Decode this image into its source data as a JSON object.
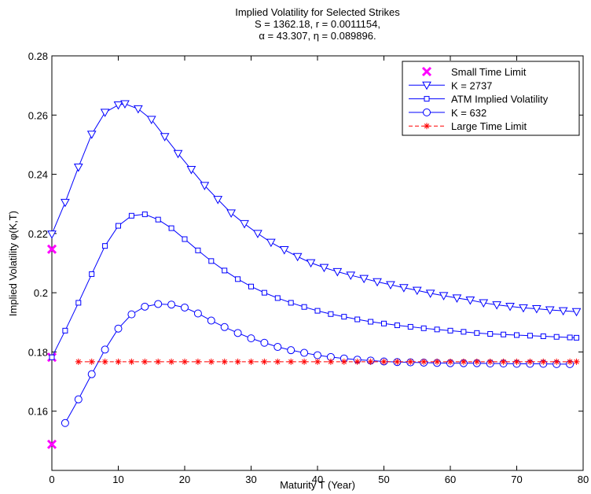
{
  "chart_data": {
    "type": "line",
    "title_lines": [
      "Implied Volatility for Selected Strikes",
      "S = 1362.18, r = 0.0011154,",
      "α = 43.307, η = 0.089896."
    ],
    "xlabel": "Maturity T (Year)",
    "ylabel": "Implied Volatility φ(K,T)",
    "xlim": [
      0,
      80
    ],
    "ylim": [
      0.14,
      0.28
    ],
    "x_ticks": [
      0,
      10,
      20,
      30,
      40,
      50,
      60,
      70,
      80
    ],
    "y_ticks": [
      0.16,
      0.18,
      0.2,
      0.22,
      0.24,
      0.26,
      0.28
    ],
    "x_tick_labels": [
      "0",
      "10",
      "20",
      "30",
      "40",
      "50",
      "60",
      "70",
      "80"
    ],
    "y_tick_labels": [
      "0.16",
      "0.18",
      "0.2",
      "0.22",
      "0.24",
      "0.26",
      "0.28"
    ],
    "grid": false,
    "legend_position": "top-right",
    "series": [
      {
        "name": "Small Time Limit",
        "style": "x-markers",
        "color": "#ff00ff",
        "x": [
          0,
          0,
          0
        ],
        "y": [
          0.2147,
          0.1782,
          0.1488
        ]
      },
      {
        "name": "K = 2737",
        "style": "triangle-down",
        "color": "#0000ff",
        "x": [
          0,
          2,
          4,
          6,
          8,
          10,
          11,
          13,
          15,
          17,
          19,
          21,
          23,
          25,
          27,
          29,
          31,
          33,
          35,
          37,
          39,
          41,
          43,
          45,
          47,
          49,
          51,
          53,
          55,
          57,
          59,
          61,
          63,
          65,
          67,
          69,
          71,
          73,
          75,
          77,
          79
        ],
        "y": [
          0.2198,
          0.2305,
          0.2424,
          0.2535,
          0.2609,
          0.2634,
          0.2638,
          0.2621,
          0.2585,
          0.2527,
          0.247,
          0.2416,
          0.2362,
          0.2315,
          0.2269,
          0.2233,
          0.22,
          0.217,
          0.2145,
          0.2122,
          0.2101,
          0.2085,
          0.2071,
          0.2059,
          0.2048,
          0.2037,
          0.2027,
          0.2017,
          0.2008,
          0.1998,
          0.199,
          0.1982,
          0.1975,
          0.1966,
          0.1959,
          0.1954,
          0.1949,
          0.1946,
          0.1942,
          0.1939,
          0.1936
        ]
      },
      {
        "name": "ATM Implied Volatility",
        "style": "square",
        "color": "#0000ff",
        "x": [
          0,
          2,
          4,
          6,
          8,
          10,
          12,
          14,
          16,
          18,
          20,
          22,
          24,
          26,
          28,
          30,
          32,
          34,
          36,
          38,
          40,
          42,
          44,
          46,
          48,
          50,
          52,
          54,
          56,
          58,
          60,
          62,
          64,
          66,
          68,
          70,
          72,
          74,
          76,
          78,
          79
        ],
        "y": [
          0.1782,
          0.1872,
          0.1966,
          0.2063,
          0.2158,
          0.2226,
          0.226,
          0.2265,
          0.2247,
          0.2218,
          0.2181,
          0.2143,
          0.2107,
          0.2075,
          0.2046,
          0.2021,
          0.2,
          0.1982,
          0.1966,
          0.1952,
          0.1939,
          0.1928,
          0.1919,
          0.191,
          0.1902,
          0.1896,
          0.189,
          0.1885,
          0.188,
          0.1876,
          0.1872,
          0.1868,
          0.1864,
          0.1861,
          0.1859,
          0.1857,
          0.1855,
          0.1853,
          0.1851,
          0.1849,
          0.1848
        ]
      },
      {
        "name": "K = 632",
        "style": "circle",
        "color": "#0000ff",
        "x": [
          2,
          4,
          6,
          8,
          10,
          12,
          14,
          16,
          18,
          20,
          22,
          24,
          26,
          28,
          30,
          32,
          34,
          36,
          38,
          40,
          42,
          44,
          46,
          48,
          50,
          52,
          54,
          56,
          58,
          60,
          62,
          64,
          66,
          68,
          70,
          72,
          74,
          76,
          78
        ],
        "y": [
          0.156,
          0.164,
          0.1725,
          0.1808,
          0.1879,
          0.1927,
          0.1953,
          0.1962,
          0.196,
          0.195,
          0.193,
          0.1906,
          0.1884,
          0.1864,
          0.1846,
          0.1831,
          0.1817,
          0.1806,
          0.1797,
          0.1789,
          0.1783,
          0.1778,
          0.1774,
          0.1771,
          0.1768,
          0.1766,
          0.1765,
          0.1764,
          0.1763,
          0.1762,
          0.1762,
          0.1762,
          0.1761,
          0.1761,
          0.176,
          0.176,
          0.176,
          0.1759,
          0.1759
        ]
      },
      {
        "name": "Large Time Limit",
        "style": "dash-star",
        "color": "#ff0000",
        "x": [
          4,
          6,
          8,
          10,
          12,
          14,
          16,
          18,
          20,
          22,
          24,
          26,
          28,
          30,
          32,
          34,
          36,
          38,
          40,
          42,
          44,
          46,
          48,
          50,
          52,
          54,
          56,
          58,
          60,
          62,
          64,
          66,
          68,
          70,
          72,
          74,
          76,
          78,
          79
        ],
        "y": [
          0.1767,
          0.1767,
          0.1767,
          0.1767,
          0.1767,
          0.1767,
          0.1767,
          0.1767,
          0.1767,
          0.1767,
          0.1767,
          0.1767,
          0.1767,
          0.1767,
          0.1767,
          0.1767,
          0.1767,
          0.1767,
          0.1767,
          0.1767,
          0.1767,
          0.1767,
          0.1767,
          0.1767,
          0.1767,
          0.1767,
          0.1767,
          0.1767,
          0.1767,
          0.1767,
          0.1767,
          0.1767,
          0.1767,
          0.1767,
          0.1767,
          0.1767,
          0.1767,
          0.1767,
          0.1767
        ]
      }
    ]
  }
}
